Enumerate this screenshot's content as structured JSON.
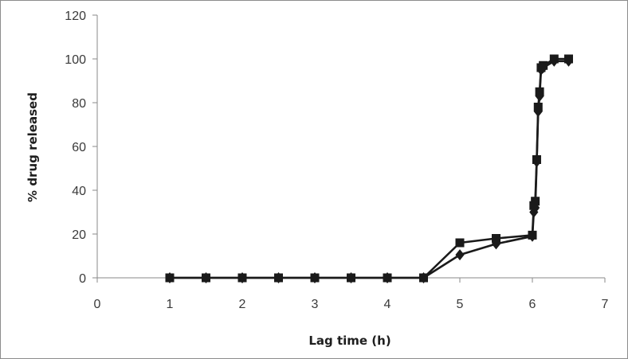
{
  "chart_data": {
    "type": "line",
    "title": "",
    "xlabel": "Lag time (h)",
    "ylabel": "% drug released",
    "xlim": [
      0,
      7
    ],
    "ylim": [
      0,
      120
    ],
    "x_ticks": [
      "0",
      "1",
      "2",
      "3",
      "4",
      "5",
      "6",
      "7"
    ],
    "y_ticks": [
      "0",
      "20",
      "40",
      "60",
      "80",
      "100",
      "120"
    ],
    "grid": false,
    "legend": "none",
    "series": [
      {
        "marker": "square",
        "color": "#1a1a1a",
        "x": [
          1,
          1.5,
          2,
          2.5,
          3,
          3.5,
          4,
          4.5,
          5,
          5.5,
          6,
          6.02,
          6.04,
          6.06,
          6.08,
          6.1,
          6.12,
          6.15,
          6.3,
          6.5
        ],
        "y": [
          0,
          0,
          0,
          0,
          0,
          0,
          0,
          0,
          16,
          18,
          19.5,
          33,
          35,
          54,
          78,
          85,
          96,
          97,
          100,
          100
        ]
      },
      {
        "marker": "diamond",
        "color": "#1a1a1a",
        "x": [
          1,
          1.5,
          2,
          2.5,
          3,
          3.5,
          4,
          4.5,
          5,
          5.5,
          6,
          6.02,
          6.04,
          6.06,
          6.08,
          6.1,
          6.12,
          6.15,
          6.3,
          6.5
        ],
        "y": [
          0,
          0,
          0,
          0,
          0,
          0,
          0,
          0,
          10.5,
          15.5,
          19,
          30,
          32,
          53,
          76,
          83,
          95,
          96,
          99,
          99
        ]
      }
    ]
  }
}
